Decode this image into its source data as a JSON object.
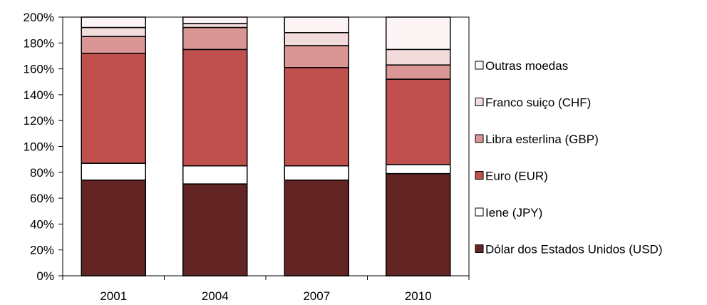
{
  "chart_data": {
    "type": "bar",
    "stacked": true,
    "categories": [
      "2001",
      "2004",
      "2007",
      "2010"
    ],
    "series": [
      {
        "name": "Dólar dos Estados Unidos (USD)",
        "color": "#632523",
        "values": [
          74,
          71,
          74,
          79
        ]
      },
      {
        "name": "Iene (JPY)",
        "color": "#ffffff",
        "values": [
          13,
          14,
          11,
          7
        ]
      },
      {
        "name": "Euro (EUR)",
        "color": "#c0504d",
        "values": [
          85,
          90,
          76,
          66
        ]
      },
      {
        "name": "Libra esterlina (GBP)",
        "color": "#d99694",
        "values": [
          13,
          17,
          17,
          11
        ]
      },
      {
        "name": "Franco suiço (CHF)",
        "color": "#f2dcdb",
        "values": [
          7,
          3,
          10,
          12
        ]
      },
      {
        "name": "Outras moedas",
        "color": "#fdf5f5",
        "values": [
          8,
          5,
          12,
          25
        ]
      }
    ],
    "ylim": [
      0,
      200
    ],
    "yticks": [
      "0%",
      "20%",
      "40%",
      "60%",
      "80%",
      "100%",
      "120%",
      "140%",
      "160%",
      "180%",
      "200%"
    ],
    "grid": false,
    "legend": "right",
    "title": "",
    "xlabel": "",
    "ylabel": ""
  }
}
